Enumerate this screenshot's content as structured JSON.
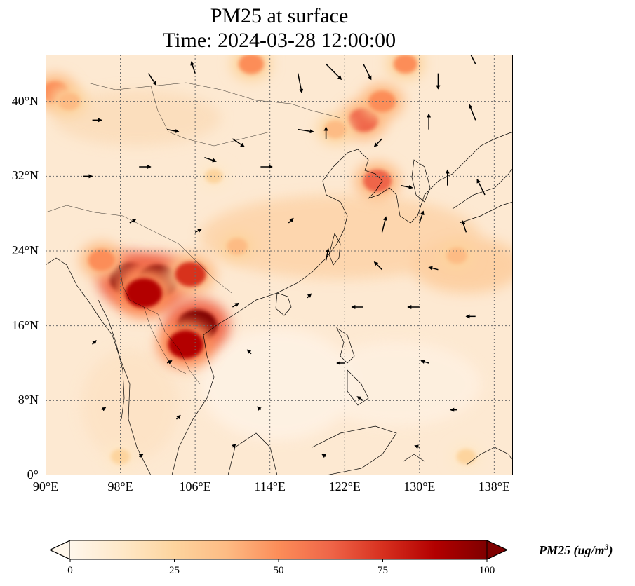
{
  "title": {
    "line1": "PM25 at surface",
    "line2": "Time: 2024-03-28 12:00:00"
  },
  "map": {
    "projection": "PlateCarree",
    "extent": {
      "lon": [
        90,
        140
      ],
      "lat": [
        0,
        45
      ]
    },
    "gridlines": "dotted gray",
    "coastlines": true,
    "lon_ticks": [
      "90°E",
      "98°E",
      "106°E",
      "114°E",
      "122°E",
      "130°E",
      "138°E"
    ],
    "lat_ticks": [
      "0°",
      "8°N",
      "16°N",
      "24°N",
      "32°N",
      "40°N"
    ],
    "lon_tick_values": [
      90,
      98,
      106,
      114,
      122,
      130,
      138
    ],
    "lat_tick_values": [
      0,
      8,
      16,
      24,
      32,
      40
    ]
  },
  "colorbar": {
    "label": "PM25 (ug/m",
    "label_sup": "3",
    "label_close": ")",
    "ticks": [
      "0",
      "25",
      "50",
      "75",
      "100"
    ],
    "tick_values": [
      0,
      25,
      50,
      75,
      100
    ],
    "range": [
      0,
      100
    ],
    "extend": "both",
    "colormap": "OrRd",
    "colors": [
      "#fff7ec",
      "#fee8c8",
      "#fdd49e",
      "#fdbb84",
      "#fc8d59",
      "#ef6548",
      "#d7301f",
      "#b30000",
      "#7f0000"
    ]
  },
  "plumes": [
    {
      "lon": 99.0,
      "lat": 21.0,
      "value": 100
    },
    {
      "lon": 102.0,
      "lat": 20.8,
      "value": 100
    },
    {
      "lon": 100.5,
      "lat": 19.5,
      "value": 90
    },
    {
      "lon": 105.5,
      "lat": 21.5,
      "value": 70
    },
    {
      "lon": 106.2,
      "lat": 16.0,
      "value": 100
    },
    {
      "lon": 105.0,
      "lat": 14.0,
      "value": 85
    },
    {
      "lon": 96.0,
      "lat": 23.0,
      "value": 55
    },
    {
      "lon": 124.0,
      "lat": 38.0,
      "value": 65
    },
    {
      "lon": 126.0,
      "lat": 40.0,
      "value": 55
    },
    {
      "lon": 121.0,
      "lat": 37.0,
      "value": 40
    },
    {
      "lon": 112.0,
      "lat": 44.0,
      "value": 50
    },
    {
      "lon": 128.5,
      "lat": 44.0,
      "value": 45
    },
    {
      "lon": 91.0,
      "lat": 41.0,
      "value": 55
    },
    {
      "lon": 92.5,
      "lat": 40.0,
      "value": 40
    },
    {
      "lon": 125.5,
      "lat": 31.5,
      "value": 60
    },
    {
      "lon": 134.0,
      "lat": 23.5,
      "value": 35
    },
    {
      "lon": 110.5,
      "lat": 24.5,
      "value": 35
    },
    {
      "lon": 108.0,
      "lat": 32.0,
      "value": 25
    },
    {
      "lon": 135.0,
      "lat": 2.0,
      "value": 30
    },
    {
      "lon": 98.0,
      "lat": 2.0,
      "value": 30
    }
  ],
  "wind_vectors": [
    {
      "lon": 101,
      "lat": 43,
      "u": 1,
      "v": -1.5
    },
    {
      "lon": 106,
      "lat": 43,
      "u": -0.5,
      "v": 1.5
    },
    {
      "lon": 117,
      "lat": 43,
      "u": 0.5,
      "v": -2.5
    },
    {
      "lon": 120,
      "lat": 44,
      "u": 2,
      "v": -2
    },
    {
      "lon": 124,
      "lat": 44,
      "u": 1,
      "v": -2
    },
    {
      "lon": 132,
      "lat": 43,
      "u": 0,
      "v": -2
    },
    {
      "lon": 136,
      "lat": 44,
      "u": -1,
      "v": 2
    },
    {
      "lon": 95,
      "lat": 38,
      "u": 1.2,
      "v": 0
    },
    {
      "lon": 103,
      "lat": 37,
      "u": 1.5,
      "v": -0.3
    },
    {
      "lon": 110,
      "lat": 36,
      "u": 1.5,
      "v": -1
    },
    {
      "lon": 117,
      "lat": 37,
      "u": 2,
      "v": -0.3
    },
    {
      "lon": 120,
      "lat": 36,
      "u": 0,
      "v": 1.5
    },
    {
      "lon": 126,
      "lat": 36,
      "u": -1,
      "v": -1
    },
    {
      "lon": 131,
      "lat": 37,
      "u": 0,
      "v": 2
    },
    {
      "lon": 136,
      "lat": 38,
      "u": -0.8,
      "v": 2
    },
    {
      "lon": 94,
      "lat": 32,
      "u": 1.2,
      "v": 0
    },
    {
      "lon": 100,
      "lat": 33,
      "u": 1.5,
      "v": 0
    },
    {
      "lon": 107,
      "lat": 34,
      "u": 1.5,
      "v": -0.5
    },
    {
      "lon": 113,
      "lat": 33,
      "u": 1.5,
      "v": 0
    },
    {
      "lon": 128,
      "lat": 31,
      "u": 1.5,
      "v": -0.3
    },
    {
      "lon": 133,
      "lat": 31,
      "u": 0,
      "v": 2
    },
    {
      "lon": 137,
      "lat": 30,
      "u": -1,
      "v": 2
    },
    {
      "lon": 99,
      "lat": 27,
      "u": 0.8,
      "v": 0.5
    },
    {
      "lon": 106,
      "lat": 26,
      "u": 0.8,
      "v": 0.4
    },
    {
      "lon": 116,
      "lat": 27,
      "u": 0.6,
      "v": 0.6
    },
    {
      "lon": 126,
      "lat": 26,
      "u": 0.5,
      "v": 2
    },
    {
      "lon": 130,
      "lat": 27,
      "u": 0.5,
      "v": 1.5
    },
    {
      "lon": 135,
      "lat": 26,
      "u": -0.5,
      "v": 1.5
    },
    {
      "lon": 120,
      "lat": 23,
      "u": 0.3,
      "v": 1.5
    },
    {
      "lon": 126,
      "lat": 22,
      "u": -1,
      "v": 1
    },
    {
      "lon": 132,
      "lat": 22,
      "u": -1.2,
      "v": 0.3
    },
    {
      "lon": 110,
      "lat": 18,
      "u": 0.8,
      "v": 0.5
    },
    {
      "lon": 118,
      "lat": 19,
      "u": 0.5,
      "v": 0.5
    },
    {
      "lon": 124,
      "lat": 18,
      "u": -1.5,
      "v": 0
    },
    {
      "lon": 130,
      "lat": 18,
      "u": -1.5,
      "v": 0
    },
    {
      "lon": 136,
      "lat": 17,
      "u": -1.2,
      "v": 0
    },
    {
      "lon": 95,
      "lat": 14,
      "u": 0.5,
      "v": 0.5
    },
    {
      "lon": 103,
      "lat": 12,
      "u": 0.6,
      "v": 0.3
    },
    {
      "lon": 112,
      "lat": 13,
      "u": -0.5,
      "v": 0.5
    },
    {
      "lon": 122,
      "lat": 12,
      "u": -1,
      "v": 0
    },
    {
      "lon": 131,
      "lat": 12,
      "u": -1,
      "v": 0.3
    },
    {
      "lon": 96,
      "lat": 7,
      "u": 0.5,
      "v": 0.3
    },
    {
      "lon": 104,
      "lat": 6,
      "u": 0.5,
      "v": 0.5
    },
    {
      "lon": 113,
      "lat": 7,
      "u": -0.4,
      "v": 0.4
    },
    {
      "lon": 124,
      "lat": 8,
      "u": -0.8,
      "v": 0.5
    },
    {
      "lon": 134,
      "lat": 7,
      "u": -0.8,
      "v": 0
    },
    {
      "lon": 100,
      "lat": 2,
      "u": 0.5,
      "v": 0.3
    },
    {
      "lon": 110,
      "lat": 3,
      "u": 0.4,
      "v": 0.4
    },
    {
      "lon": 120,
      "lat": 2,
      "u": -0.5,
      "v": 0.3
    },
    {
      "lon": 130,
      "lat": 3,
      "u": -0.6,
      "v": 0.2
    }
  ]
}
